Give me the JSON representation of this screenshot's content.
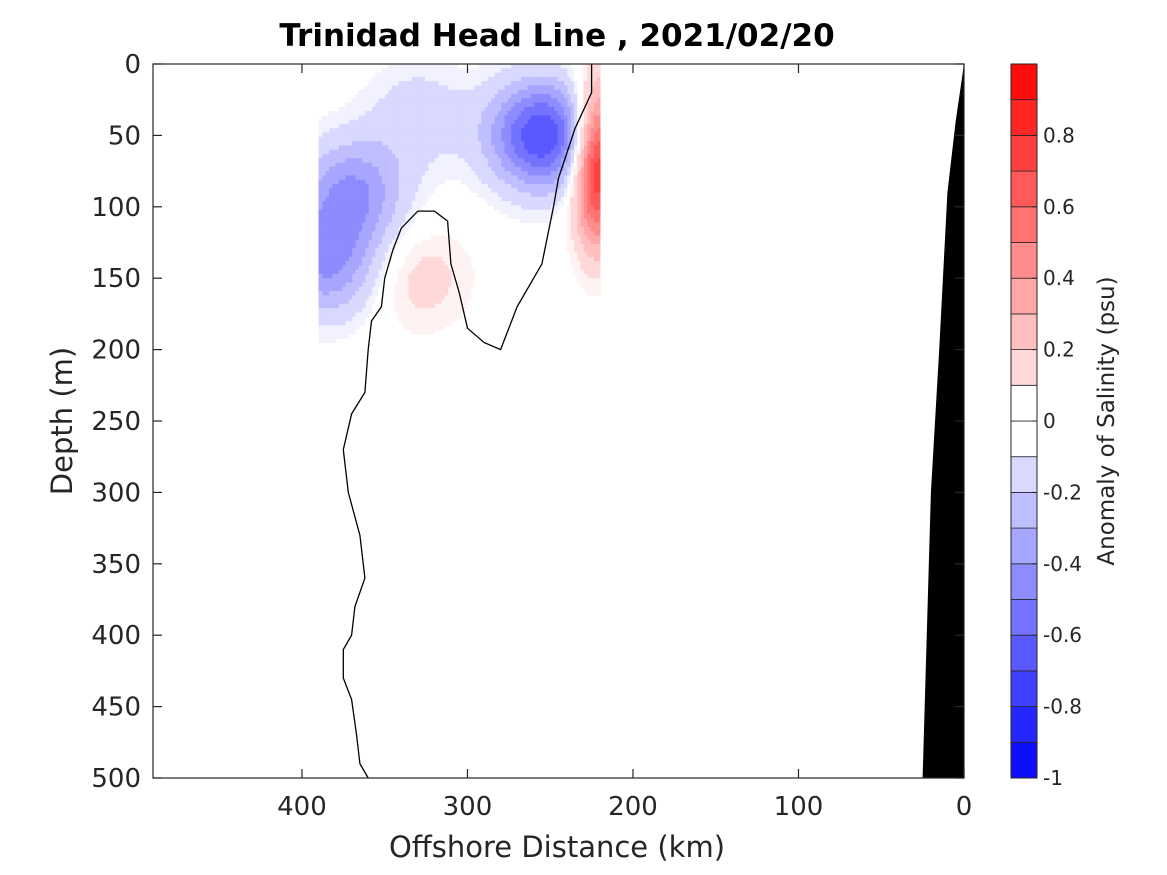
{
  "chart_data": {
    "type": "heatmap",
    "title": "Trinidad Head Line , 2021/02/20",
    "xlabel": "Offshore Distance (km)",
    "ylabel": "Depth (m)",
    "xlim": [
      490,
      0
    ],
    "ylim": [
      0,
      500
    ],
    "x_reversed": true,
    "y_reversed": true,
    "xticks": [
      400,
      300,
      200,
      100,
      0
    ],
    "yticks": [
      0,
      50,
      100,
      150,
      200,
      250,
      300,
      350,
      400,
      450,
      500
    ],
    "colorbar": {
      "label": "Anomaly of Salinity (psu)",
      "range": [
        -1,
        1
      ],
      "levels": 20,
      "ticks": [
        0.8,
        0.6,
        0.4,
        0.2,
        0,
        -0.2,
        -0.4,
        -0.6,
        -0.8,
        -1
      ],
      "tick_labels": [
        "0.8",
        "0.6",
        "0.4",
        "0.2",
        "0",
        "-0.2",
        "-0.4",
        "-0.6",
        "-0.8",
        "-1"
      ],
      "colormap": "blue-white-red"
    },
    "data_extent": {
      "x_min": 220,
      "x_max": 390,
      "depth_max": 195
    },
    "features": [
      {
        "type": "anomaly",
        "value": -0.7,
        "x": 255,
        "depth": 50
      },
      {
        "type": "anomaly",
        "value": -0.4,
        "x": 370,
        "depth": 90
      },
      {
        "type": "anomaly",
        "value": -0.4,
        "x": 385,
        "depth": 140
      },
      {
        "type": "anomaly",
        "value": 0.9,
        "x": 222,
        "depth": 70
      },
      {
        "type": "anomaly",
        "value": 0.15,
        "x": 330,
        "depth": 150
      },
      {
        "type": "anomaly",
        "value": -0.15,
        "x": 330,
        "depth": 35
      }
    ],
    "zero_contour": [
      [
        225,
        0
      ],
      [
        225,
        20
      ],
      [
        235,
        45
      ],
      [
        245,
        80
      ],
      [
        248,
        100
      ],
      [
        255,
        140
      ],
      [
        270,
        170
      ],
      [
        280,
        200
      ],
      [
        290,
        195
      ],
      [
        300,
        185
      ],
      [
        305,
        160
      ],
      [
        310,
        140
      ],
      [
        312,
        110
      ],
      [
        320,
        103
      ],
      [
        330,
        103
      ],
      [
        340,
        115
      ],
      [
        345,
        130
      ],
      [
        350,
        150
      ],
      [
        352,
        170
      ],
      [
        358,
        180
      ],
      [
        360,
        200
      ],
      [
        362,
        230
      ],
      [
        370,
        245
      ],
      [
        375,
        270
      ],
      [
        372,
        300
      ],
      [
        365,
        330
      ],
      [
        362,
        360
      ],
      [
        368,
        380
      ],
      [
        370,
        400
      ],
      [
        375,
        410
      ],
      [
        375,
        430
      ],
      [
        370,
        445
      ],
      [
        367,
        470
      ],
      [
        365,
        490
      ],
      [
        360,
        500
      ]
    ],
    "bathymetry": [
      [
        0,
        0
      ],
      [
        5,
        40
      ],
      [
        10,
        90
      ],
      [
        15,
        200
      ],
      [
        20,
        300
      ],
      [
        25,
        500
      ]
    ]
  }
}
